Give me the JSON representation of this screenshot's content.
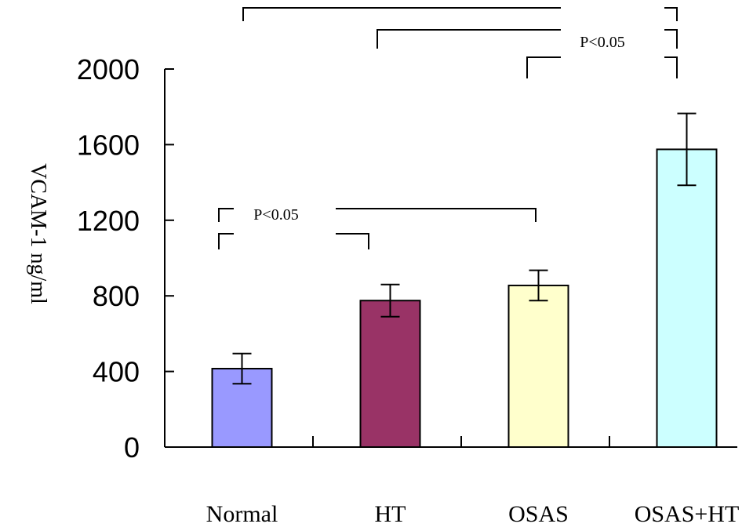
{
  "chart_data": {
    "type": "bar",
    "categories": [
      "Normal",
      "HT",
      "OSAS",
      "OSAS+HT"
    ],
    "values": [
      415,
      775,
      855,
      1575
    ],
    "errors": [
      80,
      85,
      80,
      190
    ],
    "colors": [
      "#9999ff",
      "#993366",
      "#ffffcc",
      "#ccffff"
    ],
    "ylabel": "VCAM-1 ng/ml",
    "xlabel": "",
    "title": "",
    "ylim": [
      0,
      2000
    ],
    "yticks": [
      "0",
      "400",
      "800",
      "1200",
      "1600",
      "2000"
    ],
    "grid": false,
    "annotations": [
      {
        "text": "P<0.05",
        "group": "lower"
      },
      {
        "text": "P<0.05",
        "group": "upper"
      }
    ]
  }
}
